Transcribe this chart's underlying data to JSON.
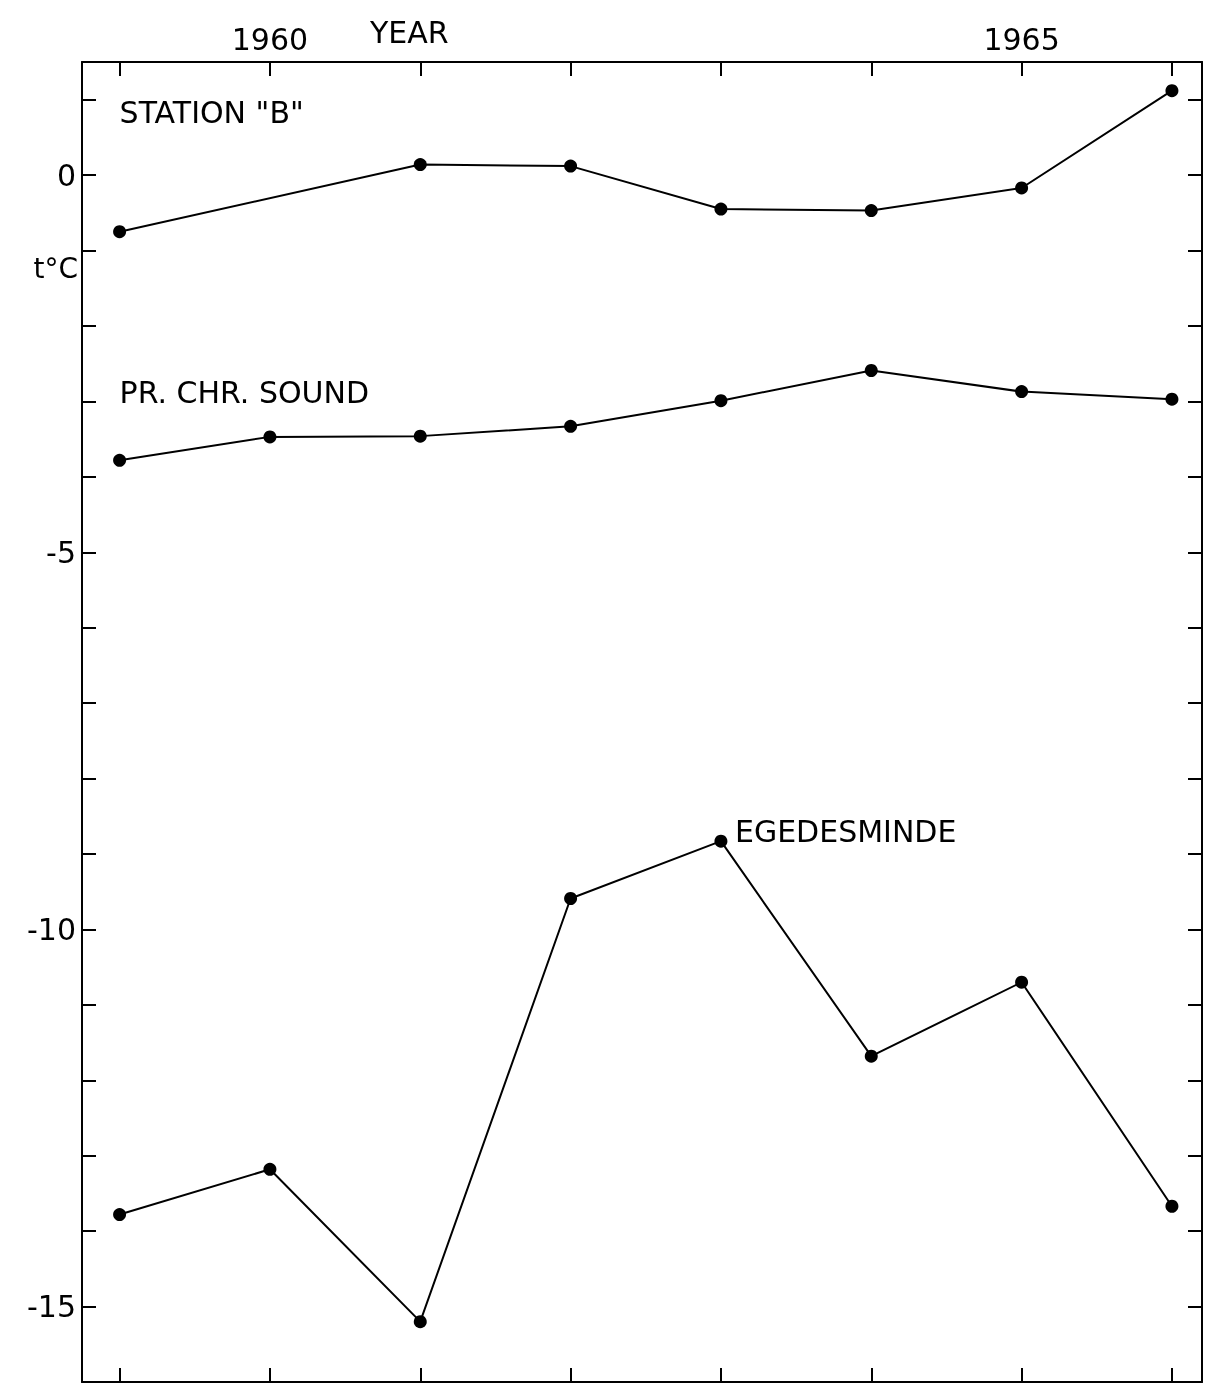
{
  "chart_data": {
    "type": "line",
    "xlabel": "YEAR",
    "ylabel": "t°C",
    "xlim": [
      1958.75,
      1966.2
    ],
    "xticks": [
      {
        "value": 1959,
        "label": null
      },
      1960,
      {
        "value": 1961,
        "label": null
      },
      {
        "value": 1962,
        "label": null
      },
      {
        "value": 1963,
        "label": null
      },
      {
        "value": 1964,
        "label": null
      },
      1965,
      {
        "value": 1966,
        "label": null
      }
    ],
    "ylim": [
      -16,
      1.5
    ],
    "yticks": [
      {
        "value": -16,
        "label": null
      },
      -15,
      {
        "value": -14,
        "label": null
      },
      {
        "value": -13,
        "label": null
      },
      {
        "value": -12,
        "label": null
      },
      {
        "value": -11,
        "label": null
      },
      -10,
      {
        "value": -9,
        "label": null
      },
      {
        "value": -8,
        "label": null
      },
      {
        "value": -7,
        "label": null
      },
      {
        "value": -6,
        "label": null
      },
      -5,
      {
        "value": -4,
        "label": null
      },
      {
        "value": -3,
        "label": null
      },
      {
        "value": -2,
        "label": null
      },
      {
        "value": -1,
        "label": null
      },
      0,
      {
        "value": 1,
        "label": null
      }
    ],
    "series": [
      {
        "name": "STATION \"B\"",
        "color": "#000000",
        "x": [
          1959,
          1961,
          1962,
          1963,
          1964,
          1965,
          1966
        ],
        "values": [
          -0.75,
          0.14,
          0.12,
          -0.45,
          -0.47,
          -0.17,
          1.12
        ]
      },
      {
        "name": "PR. CHR. SOUND",
        "color": "#000000",
        "x": [
          1959,
          1960,
          1961,
          1962,
          1963,
          1964,
          1965,
          1966
        ],
        "values": [
          -3.78,
          -3.47,
          -3.46,
          -3.33,
          -2.99,
          -2.59,
          -2.87,
          -2.97
        ]
      },
      {
        "name": "EGEDESMINDE",
        "color": "#000000",
        "x": [
          1959,
          1960,
          1961,
          1962,
          1963,
          1964,
          1965,
          1966
        ],
        "values": [
          -13.78,
          -13.18,
          -15.2,
          -9.59,
          -8.83,
          -11.68,
          -10.7,
          -13.67
        ]
      }
    ],
    "grid": false,
    "legend": false,
    "marker": "circle",
    "line_style": "solid"
  }
}
